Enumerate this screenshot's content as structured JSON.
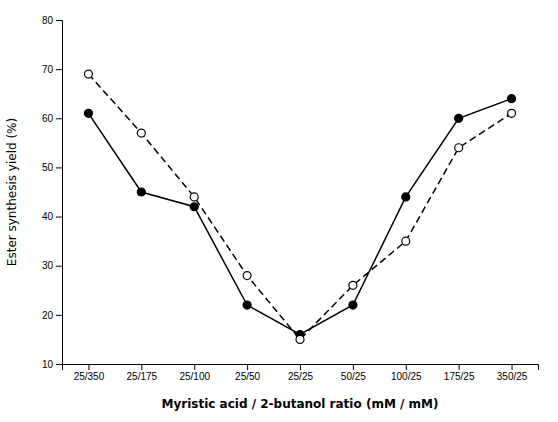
{
  "chart_data": {
    "type": "line",
    "xlabel": "Myristic acid / 2-butanol ratio (mM / mM)",
    "ylabel": "Ester synthesis yield (%)",
    "categories": [
      "25/350",
      "25/175",
      "25/100",
      "25/50",
      "25/25",
      "50/25",
      "100/25",
      "175/25",
      "350/25"
    ],
    "series": [
      {
        "color": "black",
        "line_style": "solid",
        "marker": "filled-circle",
        "values": [
          61,
          45,
          42,
          22,
          16,
          22,
          44,
          60,
          64
        ]
      },
      {
        "color": "black",
        "line_style": "dashed",
        "marker": "open-circle",
        "values": [
          69,
          57,
          44,
          28,
          15,
          26,
          35,
          54,
          61
        ]
      }
    ],
    "ylim": [
      10,
      80
    ],
    "yticks": [
      10,
      20,
      30,
      40,
      50,
      60,
      70,
      80
    ],
    "grid": false
  }
}
